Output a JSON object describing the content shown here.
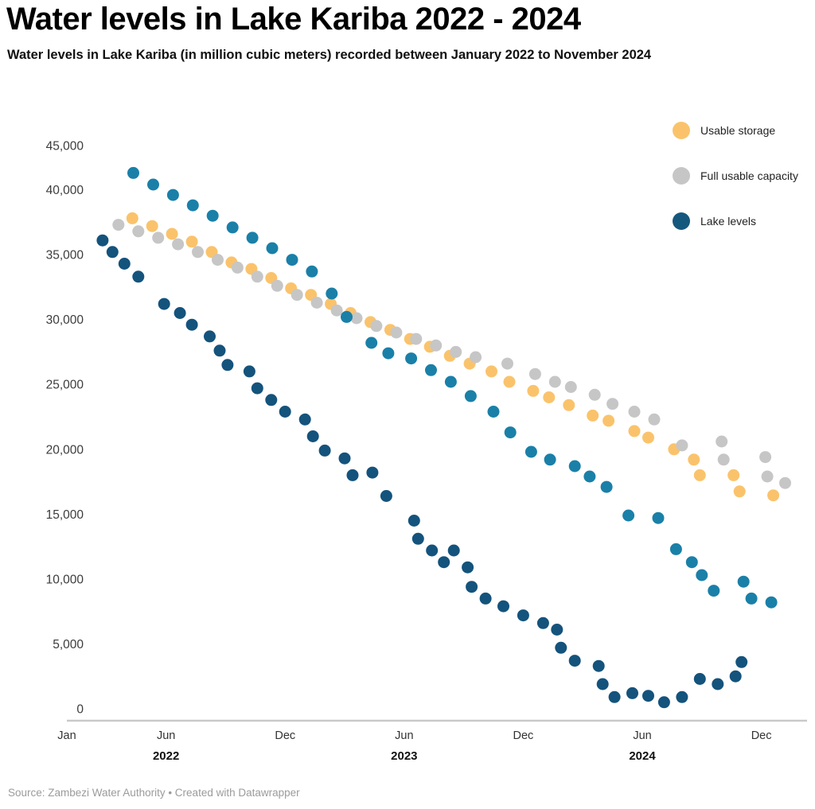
{
  "header": {
    "title": "Water levels in Lake Kariba 2022 - 2024",
    "subtitle": "Water levels in Lake Kariba (in million cubic meters) recorded between January 2022 to November 2024"
  },
  "legend": {
    "items": [
      {
        "label": "Usable storage",
        "color": "#FAC36B"
      },
      {
        "label": "Full usable capacity",
        "color": "#C6C6C6"
      },
      {
        "label": "Lake levels",
        "color": "#15587E"
      }
    ]
  },
  "footer": {
    "text": "Source: Zambezi Water Authority • Created with Datawrapper"
  },
  "chart_data": {
    "type": "scatter",
    "title": "Water levels in Lake Kariba 2022 - 2024",
    "unit": "million cubic meters",
    "x_unit": "months_since_january_2022",
    "xlim": [
      0,
      36.5
    ],
    "ylim": [
      0,
      45000
    ],
    "grid": "off",
    "legend_position": "top-right",
    "y_axis": {
      "tick_values": [
        45000,
        40000,
        35000,
        30000,
        25000,
        20000,
        15000,
        10000,
        5000,
        0
      ],
      "tick_labels": [
        "45,000",
        "40,000",
        "35,000",
        "30,000",
        "25,000",
        "20,000",
        "15,000",
        "10,000",
        "5,000",
        "0"
      ]
    },
    "x_axis": {
      "ticks": [
        {
          "label": "Jan",
          "m": 0
        },
        {
          "label": "Jun",
          "m": 5
        },
        {
          "label": "Dec",
          "m": 11
        },
        {
          "label": "Jun",
          "m": 17
        },
        {
          "label": "Dec",
          "m": 23
        },
        {
          "label": "Jun",
          "m": 29
        },
        {
          "label": "Dec",
          "m": 35
        }
      ],
      "year_labels": [
        {
          "label": "2022",
          "m": 5
        },
        {
          "label": "2023",
          "m": 17
        },
        {
          "label": "2024",
          "m": 29
        }
      ]
    },
    "series": [
      {
        "name": "Usable storage",
        "color": "#FAC36B",
        "in_legend": true,
        "points": [
          [
            3.3,
            37800
          ],
          [
            4.3,
            37200
          ],
          [
            5.3,
            36600
          ],
          [
            6.3,
            36000
          ],
          [
            7.3,
            35200
          ],
          [
            8.3,
            34400
          ],
          [
            9.3,
            33900
          ],
          [
            10.3,
            33200
          ],
          [
            11.3,
            32400
          ],
          [
            12.3,
            31900
          ],
          [
            13.3,
            31200
          ],
          [
            14.3,
            30500
          ],
          [
            15.3,
            29800
          ],
          [
            16.3,
            29200
          ],
          [
            17.3,
            28500
          ],
          [
            18.3,
            27900
          ],
          [
            19.3,
            27200
          ],
          [
            20.3,
            26600
          ],
          [
            21.4,
            26000
          ],
          [
            22.3,
            25200
          ],
          [
            23.5,
            24500
          ],
          [
            24.3,
            24000
          ],
          [
            25.3,
            23400
          ],
          [
            26.5,
            22600
          ],
          [
            27.3,
            22200
          ],
          [
            28.6,
            21400
          ],
          [
            29.3,
            20900
          ],
          [
            30.6,
            20000
          ],
          [
            31.6,
            19200
          ],
          [
            31.9,
            18000
          ],
          [
            33.6,
            18000
          ],
          [
            33.9,
            16750
          ],
          [
            35.6,
            16450
          ]
        ]
      },
      {
        "name": "Full usable capacity",
        "color": "#C6C6C6",
        "in_legend": true,
        "points": [
          [
            2.6,
            37300
          ],
          [
            3.6,
            36800
          ],
          [
            4.6,
            36300
          ],
          [
            5.6,
            35800
          ],
          [
            6.6,
            35200
          ],
          [
            7.6,
            34600
          ],
          [
            8.6,
            34000
          ],
          [
            9.6,
            33300
          ],
          [
            10.6,
            32600
          ],
          [
            11.6,
            31900
          ],
          [
            12.6,
            31300
          ],
          [
            13.6,
            30700
          ],
          [
            14.6,
            30100
          ],
          [
            15.6,
            29500
          ],
          [
            16.6,
            29000
          ],
          [
            17.6,
            28500
          ],
          [
            18.6,
            28000
          ],
          [
            19.6,
            27500
          ],
          [
            20.6,
            27100
          ],
          [
            22.2,
            26600
          ],
          [
            23.6,
            25800
          ],
          [
            24.6,
            25200
          ],
          [
            25.4,
            24800
          ],
          [
            26.6,
            24200
          ],
          [
            27.5,
            23500
          ],
          [
            28.6,
            22900
          ],
          [
            29.6,
            22300
          ],
          [
            31.0,
            20300
          ],
          [
            33.0,
            20600
          ],
          [
            33.1,
            19200
          ],
          [
            35.2,
            19400
          ],
          [
            35.3,
            17900
          ],
          [
            36.2,
            17400
          ]
        ]
      },
      {
        "name": "Lake levels",
        "color": "#14537C",
        "in_legend": true,
        "points": [
          [
            1.8,
            36100
          ],
          [
            2.3,
            35200
          ],
          [
            2.9,
            34300
          ],
          [
            3.6,
            33300
          ],
          [
            4.9,
            31200
          ],
          [
            5.7,
            30500
          ],
          [
            6.3,
            29600
          ],
          [
            7.2,
            28700
          ],
          [
            7.7,
            27600
          ],
          [
            8.1,
            26500
          ],
          [
            9.2,
            26000
          ],
          [
            9.6,
            24700
          ],
          [
            10.3,
            23800
          ],
          [
            11.0,
            22900
          ],
          [
            12.0,
            22300
          ],
          [
            12.4,
            21000
          ],
          [
            13.0,
            19900
          ],
          [
            14.0,
            19300
          ],
          [
            14.4,
            18000
          ],
          [
            15.4,
            18200
          ],
          [
            16.1,
            16400
          ],
          [
            17.5,
            14500
          ],
          [
            17.7,
            13100
          ],
          [
            18.4,
            12200
          ],
          [
            19.0,
            11300
          ],
          [
            19.5,
            12200
          ],
          [
            20.2,
            10900
          ],
          [
            20.4,
            9400
          ],
          [
            21.1,
            8500
          ],
          [
            22.0,
            7900
          ],
          [
            23.0,
            7200
          ],
          [
            24.0,
            6600
          ],
          [
            24.7,
            6100
          ],
          [
            24.9,
            4700
          ],
          [
            25.6,
            3700
          ],
          [
            26.8,
            3300
          ],
          [
            27.0,
            1900
          ],
          [
            27.6,
            900
          ],
          [
            28.5,
            1200
          ],
          [
            29.3,
            1000
          ],
          [
            30.1,
            500
          ],
          [
            31.0,
            900
          ],
          [
            31.9,
            2300
          ],
          [
            32.8,
            1900
          ],
          [
            33.7,
            2500
          ],
          [
            34.0,
            3600
          ]
        ]
      },
      {
        "name": "",
        "color": "#1A80A8",
        "in_legend": false,
        "points": [
          [
            3.35,
            41300
          ],
          [
            4.35,
            40400
          ],
          [
            5.35,
            39600
          ],
          [
            6.35,
            38800
          ],
          [
            7.35,
            38000
          ],
          [
            8.35,
            37100
          ],
          [
            9.35,
            36300
          ],
          [
            10.35,
            35500
          ],
          [
            11.35,
            34600
          ],
          [
            12.35,
            33700
          ],
          [
            13.35,
            32000
          ],
          [
            14.1,
            30200
          ],
          [
            15.35,
            28200
          ],
          [
            16.2,
            27400
          ],
          [
            17.35,
            27000
          ],
          [
            18.35,
            26100
          ],
          [
            19.35,
            25200
          ],
          [
            20.35,
            24100
          ],
          [
            21.5,
            22900
          ],
          [
            22.35,
            21300
          ],
          [
            23.4,
            19800
          ],
          [
            24.35,
            19200
          ],
          [
            25.6,
            18700
          ],
          [
            26.35,
            17900
          ],
          [
            27.2,
            17100
          ],
          [
            28.3,
            14900
          ],
          [
            29.8,
            14700
          ],
          [
            30.7,
            12300
          ],
          [
            31.5,
            11300
          ],
          [
            32.0,
            10300
          ],
          [
            32.6,
            9100
          ],
          [
            34.1,
            9800
          ],
          [
            34.5,
            8500
          ],
          [
            35.5,
            8200
          ]
        ]
      }
    ]
  }
}
